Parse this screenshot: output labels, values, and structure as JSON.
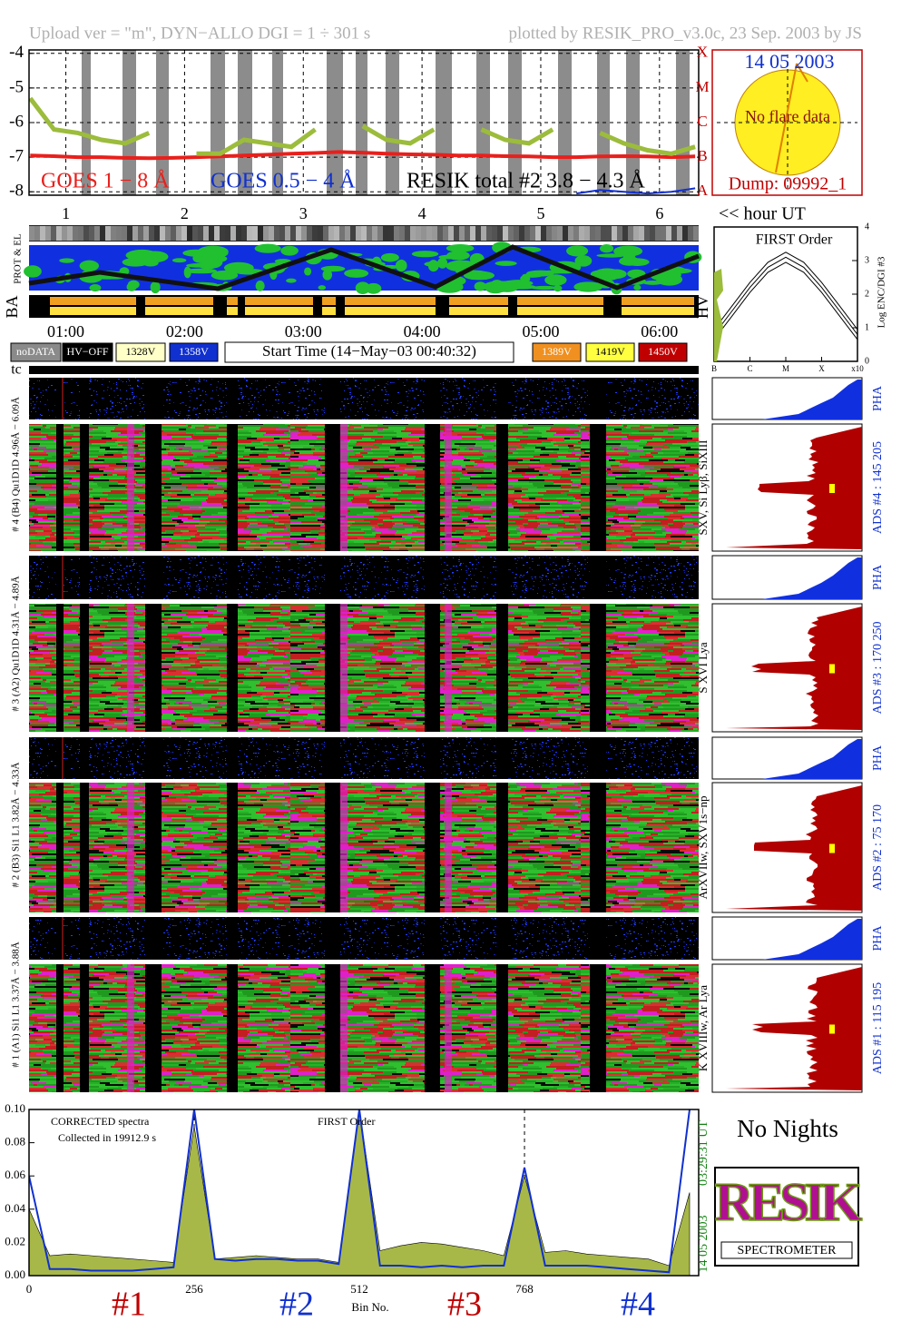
{
  "header": {
    "left": "Upload ver = \"m\", DYN−ALLO DGI =   1 ÷ 301 s",
    "right": "plotted by RESIK_PRO_v3.0c, 23 Sep. 2003 by JS"
  },
  "chart_data": [
    {
      "type": "line",
      "x": [
        0.7,
        0.9,
        1.1,
        1.3,
        1.5,
        1.7,
        1.9,
        2.1,
        2.3,
        2.5,
        2.7,
        2.9,
        3.1,
        3.3,
        3.5,
        3.7,
        3.9,
        4.1,
        4.3,
        4.5,
        4.7,
        4.9,
        5.1,
        5.3,
        5.5,
        5.7,
        5.9,
        6.1,
        6.3
      ],
      "series": [
        {
          "name": "GOES 1 − 8 Å",
          "color": "#e8201c",
          "values": [
            -6.95,
            -6.97,
            -7.0,
            -7.0,
            -7.02,
            -7.03,
            -7.02,
            -7.0,
            -6.98,
            -6.95,
            -6.93,
            -6.9,
            -6.88,
            -6.85,
            -6.87,
            -6.9,
            -6.92,
            -6.93,
            -6.95,
            -6.95,
            -6.97,
            -6.98,
            -7.0,
            -7.0,
            -6.98,
            -6.97,
            -6.98,
            -7.0,
            -6.98
          ]
        },
        {
          "name": "GOES 0.5 − 4 Å",
          "color": "#1030d0",
          "values": [
            null,
            null,
            null,
            null,
            null,
            null,
            null,
            null,
            null,
            null,
            null,
            null,
            null,
            null,
            null,
            null,
            null,
            null,
            null,
            null,
            null,
            null,
            null,
            -8.05,
            -7.95,
            -8.0,
            -8.05,
            -8.0,
            -7.9
          ]
        },
        {
          "name": "RESIK total #2  3.8 − 4.3 Å",
          "color": "#9cbc3c",
          "values": [
            -5.3,
            -6.2,
            -6.3,
            -6.5,
            -6.6,
            -6.3,
            null,
            -6.9,
            -6.9,
            -6.5,
            -6.6,
            -6.7,
            -6.2,
            null,
            -6.1,
            -6.5,
            -6.6,
            -6.2,
            null,
            -6.2,
            -6.5,
            -6.6,
            -6.2,
            null,
            -6.3,
            -6.6,
            -6.8,
            -6.9,
            -6.7
          ]
        }
      ],
      "xlim": [
        0.69,
        6.33
      ],
      "ylim": [
        -8.1,
        -3.9
      ],
      "xticks": [
        1,
        2,
        3,
        4,
        5,
        6
      ],
      "yticks": [
        -4,
        -5,
        -6,
        -7,
        -8
      ],
      "class_ticks": [
        {
          "value": -4,
          "label": "X"
        },
        {
          "value": -5,
          "label": "M"
        },
        {
          "value": -6,
          "label": "C"
        },
        {
          "value": -7,
          "label": "B"
        },
        {
          "value": -8,
          "label": "A"
        }
      ],
      "x_axis_label": "<< hour UT",
      "grid": true
    },
    {
      "type": "line",
      "title": "FIRST Order",
      "y_axis_label": "Log ENC/DGI #3",
      "x": [
        0,
        0.5,
        1,
        1.5,
        2,
        2.5,
        3,
        3.5,
        4
      ],
      "series": [
        {
          "color": "#000000",
          "values": [
            0.95,
            1.65,
            2.35,
            2.95,
            3.25,
            2.95,
            2.35,
            1.65,
            0.95
          ]
        },
        {
          "color": "#000000",
          "values": [
            0.8,
            1.5,
            2.2,
            2.8,
            3.1,
            2.8,
            2.2,
            1.5,
            0.8
          ]
        },
        {
          "color": "#000000",
          "values": [
            0.65,
            1.35,
            2.05,
            2.65,
            2.95,
            2.65,
            2.05,
            1.35,
            0.65
          ]
        }
      ],
      "xlim": [
        0,
        4
      ],
      "ylim": [
        0,
        4
      ],
      "xticks": [
        {
          "value": 0,
          "label": "B"
        },
        {
          "value": 1,
          "label": "C"
        },
        {
          "value": 2,
          "label": "M"
        },
        {
          "value": 3,
          "label": "X"
        },
        {
          "value": 4,
          "label": "x10"
        }
      ],
      "yticks": [
        0,
        1,
        2,
        3,
        4
      ],
      "grid": false
    },
    {
      "type": "line",
      "annotations": [
        "CORRECTED spectra",
        "Collected in 19912.9 s",
        "FIRST Order"
      ],
      "x_axis_label": "Bin No.",
      "x": [
        0,
        32,
        64,
        96,
        128,
        160,
        192,
        224,
        256,
        288,
        320,
        352,
        384,
        416,
        448,
        480,
        512,
        544,
        576,
        608,
        640,
        672,
        704,
        736,
        768,
        800,
        832,
        864,
        896,
        928,
        960,
        992,
        1024
      ],
      "series": [
        {
          "color": "#a8b848",
          "fill": true,
          "values": [
            0.04,
            0.012,
            0.013,
            0.012,
            0.011,
            0.01,
            0.009,
            0.008,
            0.09,
            0.01,
            0.011,
            0.012,
            0.011,
            0.01,
            0.01,
            0.008,
            0.1,
            0.015,
            0.018,
            0.02,
            0.019,
            0.017,
            0.015,
            0.012,
            0.06,
            0.014,
            0.015,
            0.013,
            0.012,
            0.011,
            0.01,
            0.006,
            0.05
          ]
        },
        {
          "color": "#1030d0",
          "fill": false,
          "values": [
            0.06,
            0.004,
            0.004,
            0.003,
            0.003,
            0.003,
            0.004,
            0.005,
            0.1,
            0.01,
            0.009,
            0.01,
            0.01,
            0.009,
            0.009,
            0.007,
            0.1,
            0.006,
            0.006,
            0.005,
            0.006,
            0.005,
            0.006,
            0.006,
            0.065,
            0.006,
            0.006,
            0.006,
            0.005,
            0.004,
            0.003,
            0.002,
            0.1
          ]
        }
      ],
      "xlim": [
        0,
        1038
      ],
      "ylim": [
        0,
        0.1
      ],
      "xticks": [
        0,
        256,
        512,
        768
      ],
      "yticks": [
        {
          "value": 0,
          "label": "0.00"
        },
        {
          "value": 0.02,
          "label": "0.02"
        },
        {
          "value": 0.04,
          "label": "0.04"
        },
        {
          "value": 0.06,
          "label": "0.06"
        },
        {
          "value": 0.08,
          "label": "0.08"
        },
        {
          "value": 0.1,
          "label": "0.10"
        }
      ],
      "grid": true
    }
  ],
  "sun": {
    "date": "14 05 2003",
    "status": "No flare data",
    "dump": "Dump: 09992_1"
  },
  "strips": {
    "prot": "PROT & EL",
    "ba": "BA",
    "hv": "HV",
    "tc": "tc"
  },
  "times": [
    "01:00",
    "02:00",
    "03:00",
    "04:00",
    "05:00",
    "06:00"
  ],
  "buttons": [
    {
      "label": "noDATA",
      "color": "#8a8a8a",
      "text_color": "#ffffff"
    },
    {
      "label": "HV−OFF",
      "color": "#000000",
      "text_color": "#ffffff"
    },
    {
      "label": "1328V",
      "color": "#ffffc8",
      "text_color": "#000000"
    },
    {
      "label": "1358V",
      "color": "#1030d0",
      "text_color": "#ffffff"
    },
    {
      "label": "1389V",
      "color": "#f09020",
      "text_color": "#ffffff"
    },
    {
      "label": "1419V",
      "color": "#ffff40",
      "text_color": "#000000"
    },
    {
      "label": "1450V",
      "color": "#c00000",
      "text_color": "#ffffff"
    }
  ],
  "start_time": "Start Time (14−May−03 00:40:32)",
  "panels": [
    {
      "range": "# 4 (B4) Qu1D1D 4.96Å − 6.09Å",
      "lines": "SXV, Si Lyβ, SiXIII",
      "ads": "ADS #4 :  145 205",
      "pha": "PHA"
    },
    {
      "range": "# 3 (A2) Qu1D1D 4.31Å − 4.89Å",
      "lines": "S XVI Lya",
      "ads": "ADS #3 :  170 250",
      "pha": "PHA"
    },
    {
      "range": "# 2 (B3) Si1 L1 3.82Å − 4.33Å",
      "lines": "ArXVIIw, SXV1s−np",
      "ads": "ADS #2 :  75 170",
      "pha": "PHA"
    },
    {
      "range": "# 1 (A1) Si1 L1 3.37Å − 3.88Å",
      "lines": "K XVIIIw, Ar Lya",
      "ads": "ADS #1 :  115 195",
      "pha": "PHA"
    }
  ],
  "footer": {
    "time": "03:29:31 UT",
    "date": "14 05 2003",
    "nights": "No Nights",
    "detectors": [
      "#1",
      "#2",
      "#3",
      "#4"
    ]
  },
  "logo": {
    "text": "RESIK",
    "caption": "SPECTROMETER"
  }
}
